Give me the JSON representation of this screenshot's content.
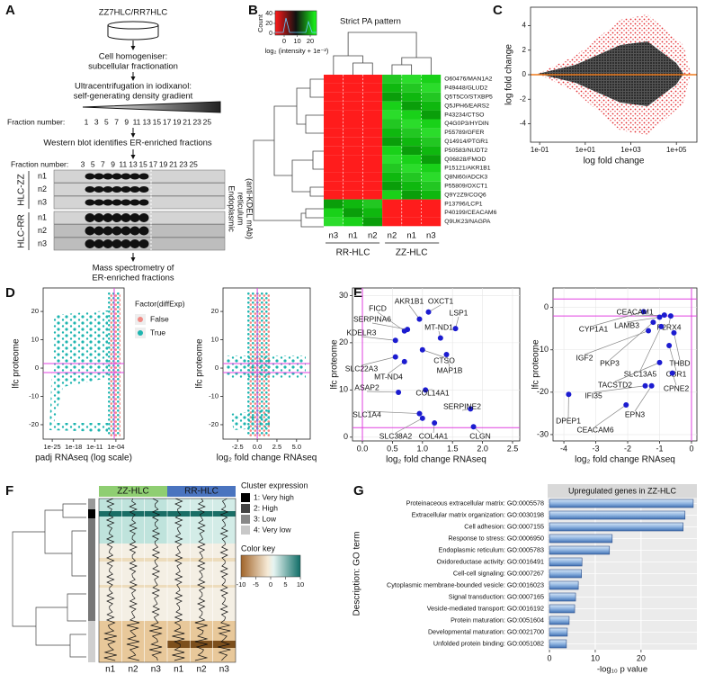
{
  "panel_A": {
    "label": "A",
    "cell_lines": "ZZ7HLC/RR7HLC",
    "step1": [
      "Cell homogeniser:",
      "subcellular fractionation"
    ],
    "step2": [
      "Ultracentrifugation in iodixanol:",
      "self-generating density gradient"
    ],
    "gradient_label": "Fraction number:",
    "gradient_fractions": [
      1,
      3,
      5,
      7,
      9,
      11,
      13,
      15,
      17,
      19,
      21,
      23,
      25
    ],
    "step3": "Western blot identifies ER-enriched fractions",
    "blot_label": "Fraction number:",
    "blot_fractions": [
      3,
      5,
      7,
      9,
      11,
      13,
      15,
      17,
      19,
      21,
      23,
      25
    ],
    "blot_groups": [
      {
        "name": "HLC-ZZ",
        "rows": [
          "n1",
          "n2",
          "n3"
        ]
      },
      {
        "name": "HLC-RR",
        "rows": [
          "n1",
          "n2",
          "n3"
        ]
      }
    ],
    "blot_side": [
      "Endoplasmic",
      "reticulum",
      "(anti-KDEL mAb)"
    ],
    "step4": [
      "Mass spectrometry of",
      "ER-enriched fractions"
    ]
  },
  "panel_B": {
    "label": "B",
    "title": "Strict PA pattern",
    "count_label": "Count",
    "count_ticks": [
      0,
      20,
      40
    ],
    "key_ticks": [
      0,
      10,
      20
    ],
    "key_label": "log₂ (intensity + 1e⁻²)",
    "rows": [
      "O60476/MAN1A2",
      "P49448/GLUD2",
      "Q5T5C0/STXBP5",
      "Q5JPH6/EARS2",
      "P43234/CTSO",
      "Q4G0P3/HYDIN",
      "P55789/GFER",
      "Q14914/PTGR1",
      "P50583/NUDT2",
      "Q06828/FMOD",
      "P15121/AKR1B1",
      "Q8NI60/ADCK3",
      "P55809/OXCT1",
      "Q9Y2Z9/COQ6",
      "P13796/LCP1",
      "P40199/CEACAM6",
      "Q9UK23/NAGPA"
    ],
    "columns": [
      "n3",
      "n1",
      "n2",
      "n2",
      "n1",
      "n3"
    ],
    "groups": [
      "RR-HLC",
      "ZZ-HLC"
    ]
  },
  "panel_C": {
    "label": "C",
    "type": "scatter",
    "xlabel": "log fold change",
    "ylabel": "log fold change",
    "xlim": [
      -1.4,
      5.9
    ],
    "xticks": [
      {
        "value": -1,
        "label": "1e-01"
      },
      {
        "value": 1,
        "label": "1e+01"
      },
      {
        "value": 3,
        "label": "1e+03"
      },
      {
        "value": 5,
        "label": "1e+05"
      }
    ],
    "ylim": [
      -5.5,
      5.5
    ],
    "yticks": [
      -4,
      -2,
      0,
      2,
      4
    ]
  },
  "panel_D": {
    "label": "D",
    "left": {
      "type": "scatter",
      "xlabel": "padj RNAseq (log scale)",
      "ylabel": "lfc proteome",
      "xlim": [
        -28,
        -1.3
      ],
      "xticks": [
        {
          "value": -25,
          "label": "1e-25"
        },
        {
          "value": -18,
          "label": "1e-18"
        },
        {
          "value": -11,
          "label": "1e-11"
        },
        {
          "value": -4,
          "label": "1e-04"
        }
      ],
      "ylim": [
        -25.1,
        28.3
      ],
      "yticks": [
        -20,
        -10,
        0,
        10,
        20
      ]
    },
    "legend": {
      "title": "Factor(diffExp)",
      "entries": [
        {
          "name": "False",
          "color": "#f08a84"
        },
        {
          "name": "True",
          "color": "#1fb5b0"
        }
      ]
    },
    "right": {
      "type": "scatter",
      "xlabel": "log₂ fold change RNAseq",
      "ylabel": "lfc proteome",
      "xlim": [
        -4.36,
        6.74
      ],
      "xticks": [
        -2.5,
        {
          "value": 0,
          "label": "0.0"
        },
        2.5,
        {
          "value": 5,
          "label": "5.0"
        }
      ],
      "ylim": [
        -25.1,
        28.3
      ],
      "yticks": [
        -20,
        -10,
        0,
        10,
        20
      ]
    }
  },
  "panel_E": {
    "label": "E",
    "left": {
      "type": "scatter",
      "xlabel": "log₂ fold change RNAseq",
      "ylabel": "lfc proteome",
      "xlim": [
        -0.165,
        2.62
      ],
      "xticks": [
        {
          "value": 0,
          "label": "0.0"
        },
        0.5,
        {
          "value": 1,
          "label": "1.0"
        },
        1.5,
        {
          "value": 2,
          "label": "2.0"
        },
        2.5
      ],
      "ylim": [
        -0.8,
        31.6
      ],
      "yticks": [
        0,
        10,
        20,
        30
      ],
      "labels": [
        "AKR1B1",
        "OXCT1",
        "FICD",
        "SERPINA6",
        "KDELR3",
        "LSP1",
        "MT-ND1",
        "CTSO",
        "MAP1B",
        "SLC22A3",
        "MT-ND4",
        "ASAP2",
        "COL14A1",
        "SERPINE2",
        "SLC1A4",
        "SLC38A2",
        "COL4A1",
        "CLGN"
      ],
      "x": [
        0.95,
        1.1,
        0.7,
        0.75,
        0.55,
        1.55,
        1.3,
        1.0,
        1.4,
        0.55,
        0.7,
        0.6,
        1.05,
        1.8,
        0.95,
        1.0,
        1.2,
        1.85
      ],
      "y": [
        25,
        26.5,
        22.5,
        22.8,
        20.5,
        23,
        21,
        18.5,
        17.5,
        17,
        16,
        9.5,
        10,
        6,
        5,
        4,
        3,
        2.2
      ]
    },
    "right": {
      "type": "scatter",
      "xlabel": "log₂ fold change RNAseq",
      "ylabel": "lfc proteome",
      "xlim": [
        -4.34,
        0.17
      ],
      "xticks": [
        -4,
        -3,
        -2,
        -1,
        0
      ],
      "ylim": [
        -31.5,
        4.6
      ],
      "yticks": [
        -30,
        -20,
        -10,
        0
      ],
      "labels": [
        "CYP1A1",
        "CEACAM1",
        "LAMB3",
        "P2RX4",
        "THBD",
        "IGF2",
        "PKP3",
        "SLC13A5",
        "CBR1",
        "TACSTD2",
        "CPNE2",
        "IFI35",
        "EPN3",
        "DPEP1",
        "CEACAM6"
      ],
      "x": [
        -1.5,
        -0.85,
        -1.0,
        -0.65,
        -0.55,
        -1.35,
        -1.2,
        -0.95,
        -0.7,
        -1.0,
        -0.6,
        -1.45,
        -1.25,
        -3.85,
        -2.05
      ],
      "y": [
        -1,
        -1.8,
        -2.3,
        -2.0,
        -6,
        -5.5,
        -3.5,
        -4.5,
        -9,
        -13,
        -15.5,
        -18.5,
        -18.5,
        -20.5,
        -23
      ]
    }
  },
  "panel_F": {
    "label": "F",
    "groups": [
      "ZZ-HLC",
      "RR-HLC"
    ],
    "columns": [
      "n1",
      "n2",
      "n3",
      "n1",
      "n2",
      "n3"
    ],
    "cluster_title": "Cluster expression",
    "clusters": [
      "1: Very high",
      "2: High",
      "3: Low",
      "4: Very low"
    ],
    "key_title": "Color key",
    "key_ticks": [
      -10,
      -5,
      0,
      5,
      10
    ]
  },
  "panel_G": {
    "label": "G",
    "type": "bar",
    "orientation": "horizontal",
    "title": "Upregulated genes in ZZ-HLC",
    "ylabel": "Description: GO term",
    "xlabel": "-log₁₀ p value",
    "categories": [
      "Proteinaceous extracellular matrix: GO:0005578",
      "Extracellular matrix organization: GO:0030198",
      "Cell adhesion: GO:0007155",
      "Response to stress: GO:0006950",
      "Endoplasmic reticulum: GO:0005783",
      "Oxidoreductase activity: GO:0016491",
      "Cell-cell signaling: GO:0007267",
      "Cytoplasmic membrane-bounded vesicle: GO:0016023",
      "Signal transduction: GO:0007165",
      "Vesicle-mediated transport: GO:0016192",
      "Protein maturation: GO:0051604",
      "Developmental maturation: GO:0021700",
      "Unfolded protein binding: GO:0051082"
    ],
    "values": [
      31.4,
      29.6,
      29.2,
      13.7,
      13.1,
      7.1,
      7.0,
      6.3,
      5.7,
      5.5,
      4.3,
      3.9,
      3.7
    ],
    "xlim": [
      -0.4,
      32.2
    ],
    "xticks": [
      0,
      10,
      20
    ],
    "grid": true
  }
}
